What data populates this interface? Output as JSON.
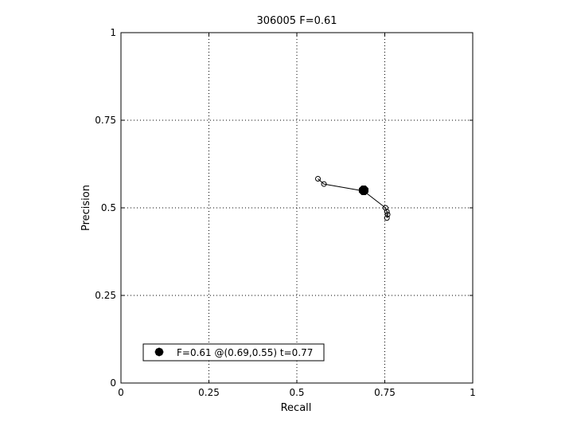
{
  "chart_data": {
    "type": "line",
    "title": "306005 F=0.61",
    "xlabel": "Recall",
    "ylabel": "Precision",
    "xlim": [
      0,
      1
    ],
    "ylim": [
      0,
      1
    ],
    "xticks": [
      "0",
      "0.25",
      "0.5",
      "0.75",
      "1"
    ],
    "yticks": [
      "0",
      "0.25",
      "0.5",
      "0.75",
      "1"
    ],
    "grid": true,
    "series": [
      {
        "marker": "open-circle",
        "points": [
          {
            "x": 0.56,
            "y": 0.583
          },
          {
            "x": 0.577,
            "y": 0.568
          },
          {
            "x": 0.69,
            "y": 0.548
          },
          {
            "x": 0.752,
            "y": 0.5
          },
          {
            "x": 0.756,
            "y": 0.489
          },
          {
            "x": 0.758,
            "y": 0.481
          },
          {
            "x": 0.756,
            "y": 0.471
          }
        ]
      }
    ],
    "best_point": {
      "x": 0.69,
      "y": 0.55,
      "marker": "filled-octagon"
    },
    "legend": {
      "label": "F=0.61 @(0.69,0.55) t=0.77",
      "placement": "bottom-left"
    }
  }
}
